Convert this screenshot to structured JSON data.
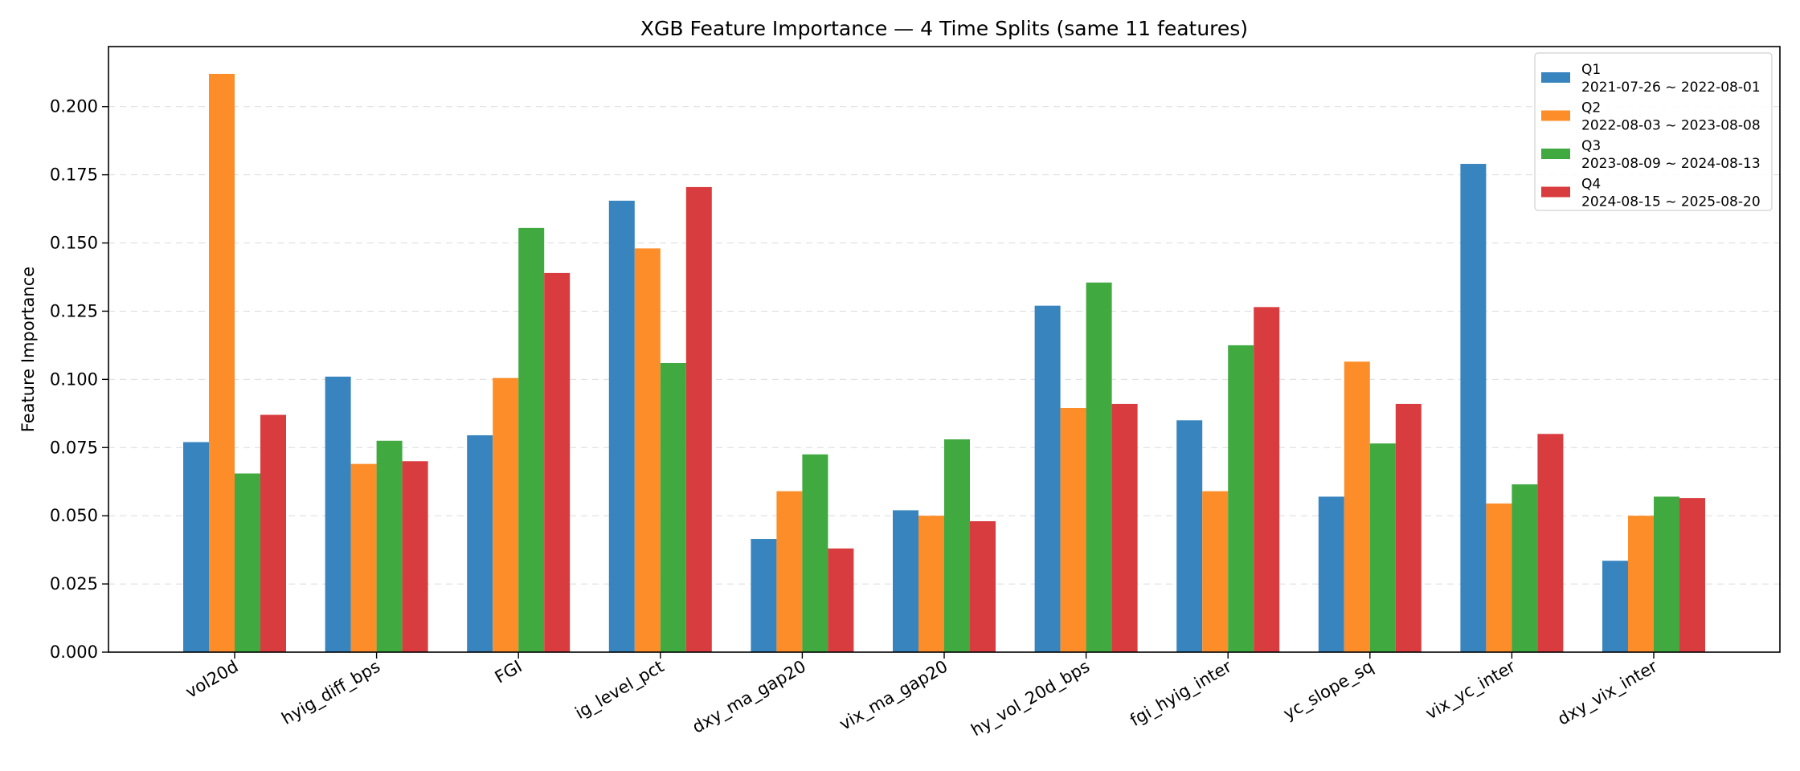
{
  "chart_data": {
    "type": "bar",
    "title": "XGB Feature Importance — 4 Time Splits (same 11 features)",
    "xlabel": "",
    "ylabel": "Feature Importance",
    "ylim": [
      0,
      0.222
    ],
    "yticks": [
      "0.000",
      "0.025",
      "0.050",
      "0.075",
      "0.100",
      "0.125",
      "0.150",
      "0.175",
      "0.200"
    ],
    "grid": "y-dashed",
    "legend_position": "top-right",
    "categories": [
      "vol20d",
      "hyig_diff_bps",
      "FGI",
      "ig_level_pct",
      "dxy_ma_gap20",
      "vix_ma_gap20",
      "hy_vol_20d_bps",
      "fgi_hyig_inter",
      "yc_slope_sq",
      "vix_yc_inter",
      "dxy_vix_inter"
    ],
    "series": [
      {
        "name": "Q1",
        "range": "2021-07-26 ~ 2022-08-01",
        "color": "#3784bf",
        "values": [
          0.077,
          0.101,
          0.0795,
          0.1655,
          0.0415,
          0.052,
          0.127,
          0.085,
          0.057,
          0.179,
          0.0335
        ]
      },
      {
        "name": "Q2",
        "range": "2022-08-03 ~ 2023-08-08",
        "color": "#fd8d28",
        "values": [
          0.212,
          0.069,
          0.1005,
          0.148,
          0.059,
          0.05,
          0.0895,
          0.059,
          0.1065,
          0.0545,
          0.05
        ]
      },
      {
        "name": "Q3",
        "range": "2023-08-09 ~ 2024-08-13",
        "color": "#40a93f",
        "values": [
          0.0655,
          0.0775,
          0.1555,
          0.106,
          0.0725,
          0.078,
          0.1355,
          0.1125,
          0.0765,
          0.0615,
          0.057
        ]
      },
      {
        "name": "Q4",
        "range": "2024-08-15 ~ 2025-08-20",
        "color": "#d93c3f",
        "values": [
          0.087,
          0.07,
          0.139,
          0.1705,
          0.038,
          0.048,
          0.091,
          0.1265,
          0.091,
          0.08,
          0.0565
        ]
      }
    ]
  }
}
